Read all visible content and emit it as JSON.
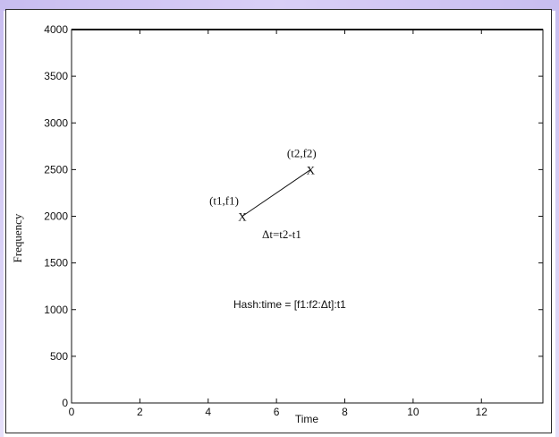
{
  "chart_data": {
    "type": "line",
    "xlabel": "Time",
    "ylabel": "Frequency",
    "xlim": [
      0,
      13.8
    ],
    "ylim": [
      0,
      4000
    ],
    "xticks": [
      0,
      2,
      4,
      6,
      8,
      10,
      12
    ],
    "yticks": [
      0,
      500,
      1000,
      1500,
      2000,
      2500,
      3000,
      3500,
      4000
    ],
    "grid": false,
    "series": [
      {
        "points": [
          {
            "x": 5,
            "y": 2000
          },
          {
            "x": 7,
            "y": 2500
          }
        ]
      }
    ],
    "point_labels": [
      {
        "text": "(t1,f1)",
        "marker": "X",
        "x": 5,
        "y": 2000
      },
      {
        "text": "(t2,f2)",
        "marker": "X",
        "x": 7,
        "y": 2500
      }
    ],
    "annotations": {
      "delta_t": "Δt=t2-t1",
      "hash": "Hash:time = [f1:f2:Δt]:t1"
    }
  }
}
